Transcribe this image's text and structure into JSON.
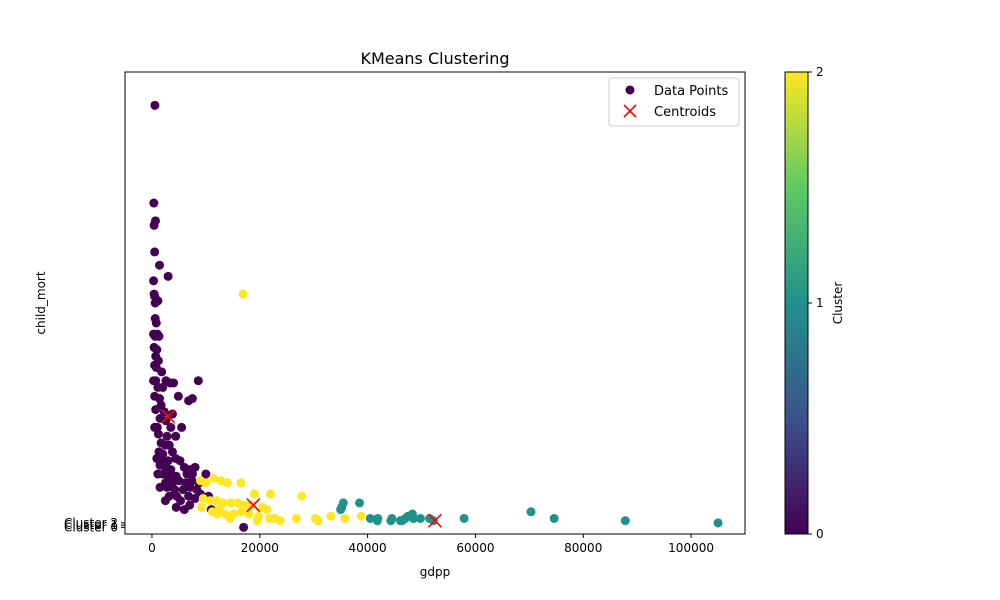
{
  "chart_data": {
    "type": "scatter",
    "title": "KMeans Clustering",
    "xlabel": "gdpp",
    "ylabel": "child_mort",
    "xlim": [
      -5000,
      110000
    ],
    "ylim": [
      -3,
      205
    ],
    "grid": false,
    "x_ticks": [
      0,
      20000,
      40000,
      60000,
      80000,
      100000
    ],
    "x_tick_labels": [
      "0",
      "20000",
      "40000",
      "60000",
      "80000",
      "100000"
    ],
    "y_tick_labels": [
      "Cluster 0",
      "Cluster 1",
      "Cluster 2"
    ],
    "legend": {
      "placement": "top-right",
      "entries": [
        "Data Points",
        "Centroids"
      ]
    },
    "colorbar": {
      "label": "Cluster",
      "ticks": [
        0,
        1,
        2
      ],
      "tick_labels": [
        "0",
        "1",
        "2"
      ],
      "colormap": [
        "#440154",
        "#3b528b",
        "#21918c",
        "#5ec962",
        "#fde725"
      ]
    },
    "cluster_colors": [
      "#440154",
      "#21918c",
      "#fde725"
    ],
    "centroid_color": "#ff0000",
    "series": [
      {
        "cluster": 0,
        "points": [
          [
            550,
            190
          ],
          [
            350,
            146
          ],
          [
            400,
            136
          ],
          [
            650,
            138
          ],
          [
            500,
            124
          ],
          [
            1400,
            118
          ],
          [
            300,
            111
          ],
          [
            3000,
            113
          ],
          [
            400,
            105
          ],
          [
            500,
            104
          ],
          [
            600,
            101
          ],
          [
            1100,
            102
          ],
          [
            17000,
            0
          ],
          [
            600,
            94
          ],
          [
            800,
            92
          ],
          [
            300,
            87
          ],
          [
            600,
            86
          ],
          [
            1000,
            87
          ],
          [
            1300,
            86
          ],
          [
            400,
            81
          ],
          [
            900,
            80
          ],
          [
            700,
            77
          ],
          [
            1200,
            75
          ],
          [
            500,
            73
          ],
          [
            800,
            72
          ],
          [
            1800,
            70
          ],
          [
            300,
            66
          ],
          [
            700,
            66
          ],
          [
            2600,
            66
          ],
          [
            3400,
            65
          ],
          [
            4000,
            65
          ],
          [
            8600,
            66
          ],
          [
            1100,
            63
          ],
          [
            2000,
            63
          ],
          [
            500,
            59
          ],
          [
            1400,
            58
          ],
          [
            4900,
            59
          ],
          [
            6800,
            57
          ],
          [
            7500,
            58
          ],
          [
            1700,
            55
          ],
          [
            700,
            53
          ],
          [
            2300,
            52
          ],
          [
            3800,
            51
          ],
          [
            1500,
            49
          ],
          [
            2600,
            48
          ],
          [
            500,
            45
          ],
          [
            1000,
            45
          ],
          [
            3500,
            45
          ],
          [
            5500,
            45
          ],
          [
            1200,
            42
          ],
          [
            2800,
            41
          ],
          [
            4400,
            41
          ],
          [
            1700,
            38
          ],
          [
            2500,
            37
          ],
          [
            3200,
            37
          ],
          [
            1300,
            34
          ],
          [
            2000,
            33
          ],
          [
            3800,
            34
          ],
          [
            900,
            31
          ],
          [
            2200,
            30
          ],
          [
            3000,
            30
          ],
          [
            4400,
            31
          ],
          [
            5200,
            30
          ],
          [
            1500,
            28
          ],
          [
            2600,
            27
          ],
          [
            3500,
            26
          ],
          [
            6000,
            27
          ],
          [
            7000,
            26
          ],
          [
            8000,
            27
          ],
          [
            1100,
            24
          ],
          [
            2000,
            24
          ],
          [
            3000,
            23
          ],
          [
            4500,
            23
          ],
          [
            6500,
            24
          ],
          [
            7500,
            24
          ],
          [
            10000,
            24
          ],
          [
            2500,
            20
          ],
          [
            3800,
            20
          ],
          [
            5000,
            21
          ],
          [
            6200,
            20
          ],
          [
            7400,
            21
          ],
          [
            8700,
            20
          ],
          [
            1500,
            18
          ],
          [
            2800,
            18
          ],
          [
            4200,
            17
          ],
          [
            5800,
            17
          ],
          [
            7100,
            18
          ],
          [
            8300,
            17
          ],
          [
            3200,
            14
          ],
          [
            4600,
            14
          ],
          [
            6800,
            14
          ],
          [
            9000,
            15
          ],
          [
            10500,
            14
          ],
          [
            2500,
            12
          ],
          [
            5300,
            12
          ],
          [
            8000,
            13
          ],
          [
            4500,
            9
          ],
          [
            7000,
            10
          ],
          [
            6000,
            8
          ],
          [
            11000,
            8
          ]
        ]
      },
      {
        "cluster": 1,
        "points": [
          [
            35200,
            9
          ],
          [
            35500,
            11
          ],
          [
            38500,
            11
          ],
          [
            35000,
            8
          ],
          [
            40500,
            4
          ],
          [
            41800,
            3
          ],
          [
            41900,
            4
          ],
          [
            44300,
            3
          ],
          [
            44500,
            4
          ],
          [
            46100,
            3
          ],
          [
            46400,
            3
          ],
          [
            47000,
            4
          ],
          [
            47500,
            5
          ],
          [
            48300,
            6
          ],
          [
            48500,
            4
          ],
          [
            49800,
            4
          ],
          [
            51500,
            4
          ],
          [
            52200,
            3
          ],
          [
            57900,
            4
          ],
          [
            70300,
            7
          ],
          [
            74600,
            4
          ],
          [
            87800,
            3
          ],
          [
            105000,
            2
          ]
        ]
      },
      {
        "cluster": 2,
        "points": [
          [
            16900,
            105
          ],
          [
            9000,
            21
          ],
          [
            10000,
            20
          ],
          [
            11500,
            22
          ],
          [
            12800,
            21
          ],
          [
            14000,
            20
          ],
          [
            16500,
            20
          ],
          [
            19000,
            15
          ],
          [
            22000,
            15
          ],
          [
            27800,
            14
          ],
          [
            9500,
            13
          ],
          [
            10800,
            12
          ],
          [
            12000,
            12
          ],
          [
            13200,
            11
          ],
          [
            14700,
            11
          ],
          [
            16000,
            11
          ],
          [
            17200,
            10
          ],
          [
            18400,
            10
          ],
          [
            20500,
            9
          ],
          [
            21300,
            8
          ],
          [
            9200,
            9
          ],
          [
            11200,
            7
          ],
          [
            12100,
            6
          ],
          [
            13600,
            6
          ],
          [
            15100,
            6
          ],
          [
            16600,
            7
          ],
          [
            19800,
            5
          ],
          [
            21800,
            4
          ],
          [
            22800,
            4
          ],
          [
            23800,
            3
          ],
          [
            26800,
            4
          ],
          [
            30300,
            4
          ],
          [
            30800,
            3
          ],
          [
            33200,
            5
          ],
          [
            35800,
            4
          ],
          [
            38800,
            5
          ],
          [
            19500,
            3
          ],
          [
            14500,
            4
          ],
          [
            12500,
            8
          ],
          [
            18000,
            6
          ]
        ]
      }
    ],
    "centroids": [
      [
        3000,
        50
      ],
      [
        18800,
        10
      ],
      [
        52500,
        3
      ]
    ]
  }
}
